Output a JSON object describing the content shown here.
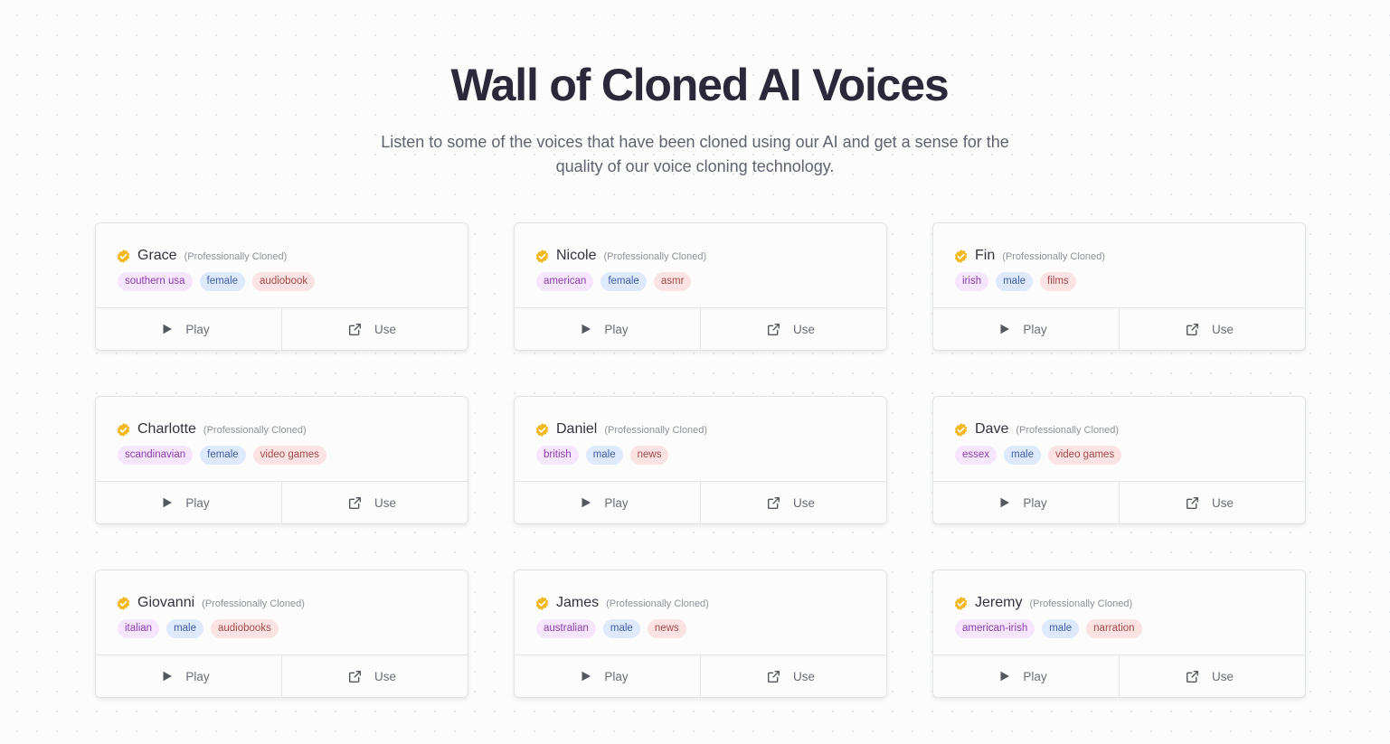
{
  "header": {
    "title": "Wall of Cloned AI Voices",
    "subtitle": "Listen to some of the voices that have been cloned using our AI and get a sense for the quality of our voice cloning technology."
  },
  "card_labels": {
    "subtitle": "(Professionally Cloned)",
    "play": "Play",
    "use": "Use"
  },
  "colors": {
    "verified_badge": "#f2b81f",
    "accent_tag_bg": "#f6e6fb",
    "gender_tag_bg": "#dfe9fc",
    "usecase_tag_bg": "#fbe3e3"
  },
  "icons": {
    "badge": "verified-badge-icon",
    "play": "play-icon",
    "use": "external-link-icon"
  },
  "voices": [
    {
      "name": "Grace",
      "accent": "southern usa",
      "gender": "female",
      "use_case": "audiobook"
    },
    {
      "name": "Nicole",
      "accent": "american",
      "gender": "female",
      "use_case": "asmr"
    },
    {
      "name": "Fin",
      "accent": "irish",
      "gender": "male",
      "use_case": "films"
    },
    {
      "name": "Charlotte",
      "accent": "scandinavian",
      "gender": "female",
      "use_case": "video games"
    },
    {
      "name": "Daniel",
      "accent": "british",
      "gender": "male",
      "use_case": "news"
    },
    {
      "name": "Dave",
      "accent": "essex",
      "gender": "male",
      "use_case": "video games"
    },
    {
      "name": "Giovanni",
      "accent": "italian",
      "gender": "male",
      "use_case": "audiobooks"
    },
    {
      "name": "James",
      "accent": "australian",
      "gender": "male",
      "use_case": "news"
    },
    {
      "name": "Jeremy",
      "accent": "american-irish",
      "gender": "male",
      "use_case": "narration"
    }
  ]
}
